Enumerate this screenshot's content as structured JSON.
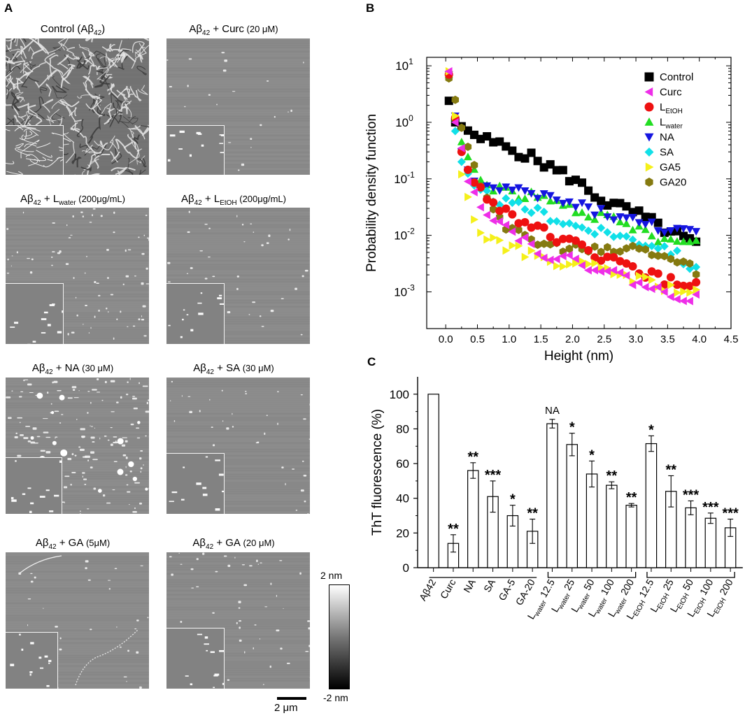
{
  "panel_labels": {
    "a": "A",
    "b": "B",
    "c": "C"
  },
  "afm_panels": [
    {
      "pre": "Control (Aβ",
      "sub": "42",
      "post": ")",
      "conc": ""
    },
    {
      "pre": "Aβ",
      "sub": "42",
      "post": " + Curc",
      "conc": " (20 μM)"
    },
    {
      "pre": "Aβ",
      "sub": "42",
      "post": " + L",
      "sub2": "water",
      "conc": " (200μg/mL)"
    },
    {
      "pre": "Aβ",
      "sub": "42",
      "post": " + L",
      "sub2": "EtOH",
      "conc": " (200μg/mL)"
    },
    {
      "pre": "Aβ",
      "sub": "42",
      "post": " + NA",
      "conc": " (30 μM)"
    },
    {
      "pre": "Aβ",
      "sub": "42",
      "post": " + SA",
      "conc": " (30 μM)"
    },
    {
      "pre": "Aβ",
      "sub": "42",
      "post": " + GA",
      "conc": " (5μM)"
    },
    {
      "pre": "Aβ",
      "sub": "42",
      "post": " + GA",
      "conc": " (20 μM)"
    }
  ],
  "colorbar": {
    "top": "2 nm",
    "bottom": "-2 nm"
  },
  "scalebar": {
    "label": "2 μm"
  },
  "chart_data": [
    {
      "type": "scatter",
      "panel": "B",
      "xlabel": "Height (nm)",
      "ylabel": "Probability density function",
      "xlim": [
        -0.3,
        4.5
      ],
      "ylim_log10": [
        -3.65,
        1.15
      ],
      "yscale": "log",
      "xticks": [
        "0.0",
        "0.5",
        "1.0",
        "1.5",
        "2.0",
        "2.5",
        "3.0",
        "3.5",
        "4.0",
        "4.5"
      ],
      "yticks": [
        {
          "base": "10",
          "exp": "1",
          "value": 10
        },
        {
          "base": "10",
          "exp": "0",
          "value": 1
        },
        {
          "base": "10",
          "exp": "-1",
          "value": 0.1
        },
        {
          "base": "10",
          "exp": "-2",
          "value": 0.01
        },
        {
          "base": "10",
          "exp": "-3",
          "value": 0.001
        }
      ],
      "series": [
        {
          "name": "Control",
          "sub": "",
          "color": "#000000",
          "marker": "square",
          "anchors": [
            [
              0.05,
              2.4
            ],
            [
              0.15,
              1.0
            ],
            [
              0.25,
              0.85
            ],
            [
              0.5,
              0.55
            ],
            [
              1.0,
              0.35
            ],
            [
              1.5,
              0.2
            ],
            [
              2.0,
              0.1
            ],
            [
              2.5,
              0.04
            ],
            [
              3.0,
              0.025
            ],
            [
              3.5,
              0.012
            ],
            [
              3.95,
              0.007
            ]
          ]
        },
        {
          "name": "Curc",
          "sub": "",
          "color": "#ee2ee8",
          "marker": "tri-left",
          "anchors": [
            [
              0.05,
              8
            ],
            [
              0.15,
              1.0
            ],
            [
              0.25,
              0.35
            ],
            [
              0.35,
              0.09
            ],
            [
              0.6,
              0.03
            ],
            [
              1.0,
              0.013
            ],
            [
              1.5,
              0.005
            ],
            [
              2.0,
              0.0035
            ],
            [
              2.5,
              0.0025
            ],
            [
              3.0,
              0.0015
            ],
            [
              3.5,
              0.0009
            ],
            [
              3.95,
              0.0008
            ]
          ]
        },
        {
          "name": "L",
          "sub": "EtOH",
          "color": "#ee1111",
          "marker": "circle",
          "anchors": [
            [
              0.05,
              7
            ],
            [
              0.15,
              1.2
            ],
            [
              0.25,
              0.3
            ],
            [
              0.4,
              0.1
            ],
            [
              0.7,
              0.04
            ],
            [
              1.0,
              0.025
            ],
            [
              1.5,
              0.012
            ],
            [
              2.0,
              0.007
            ],
            [
              2.5,
              0.004
            ],
            [
              3.0,
              0.0025
            ],
            [
              3.5,
              0.0015
            ],
            [
              3.95,
              0.0013
            ]
          ]
        },
        {
          "name": "L",
          "sub": "water",
          "color": "#22dd22",
          "marker": "tri-up",
          "anchors": [
            [
              0.05,
              7
            ],
            [
              0.15,
              1.2
            ],
            [
              0.25,
              0.45
            ],
            [
              0.4,
              0.18
            ],
            [
              0.6,
              0.08
            ],
            [
              1.0,
              0.06
            ],
            [
              1.5,
              0.045
            ],
            [
              2.0,
              0.03
            ],
            [
              2.5,
              0.02
            ],
            [
              3.0,
              0.013
            ],
            [
              3.5,
              0.008
            ],
            [
              3.95,
              0.007
            ]
          ]
        },
        {
          "name": "NA",
          "sub": "",
          "color": "#1515e0",
          "marker": "tri-down",
          "anchors": [
            [
              0.05,
              7
            ],
            [
              0.15,
              1.3
            ],
            [
              0.25,
              0.3
            ],
            [
              0.4,
              0.1
            ],
            [
              0.6,
              0.07
            ],
            [
              1.0,
              0.06
            ],
            [
              1.5,
              0.05
            ],
            [
              2.0,
              0.035
            ],
            [
              2.5,
              0.025
            ],
            [
              3.0,
              0.017
            ],
            [
              3.5,
              0.013
            ],
            [
              3.95,
              0.01
            ]
          ]
        },
        {
          "name": "SA",
          "sub": "",
          "color": "#11e0e8",
          "marker": "diamond",
          "anchors": [
            [
              0.05,
              7
            ],
            [
              0.15,
              0.7
            ],
            [
              0.25,
              0.2
            ],
            [
              0.5,
              0.06
            ],
            [
              1.0,
              0.035
            ],
            [
              1.5,
              0.025
            ],
            [
              2.0,
              0.015
            ],
            [
              2.5,
              0.012
            ],
            [
              3.0,
              0.008
            ],
            [
              3.5,
              0.006
            ],
            [
              3.95,
              0.0023
            ]
          ]
        },
        {
          "name": "GA5",
          "sub": "",
          "color": "#f5f01a",
          "marker": "tri-right",
          "anchors": [
            [
              0.05,
              8
            ],
            [
              0.15,
              1.3
            ],
            [
              0.25,
              0.12
            ],
            [
              0.5,
              0.012
            ],
            [
              1.0,
              0.006
            ],
            [
              1.5,
              0.004
            ],
            [
              2.0,
              0.003
            ],
            [
              2.5,
              0.0025
            ],
            [
              3.0,
              0.0017
            ],
            [
              3.5,
              0.0012
            ],
            [
              3.95,
              0.0009
            ]
          ]
        },
        {
          "name": "GA20",
          "sub": "",
          "color": "#857a10",
          "marker": "hexagon",
          "anchors": [
            [
              0.05,
              6
            ],
            [
              0.15,
              2.5
            ],
            [
              0.25,
              0.8
            ],
            [
              0.4,
              0.25
            ],
            [
              0.6,
              0.06
            ],
            [
              1.0,
              0.012
            ],
            [
              1.5,
              0.007
            ],
            [
              2.0,
              0.006
            ],
            [
              2.5,
              0.005
            ],
            [
              3.0,
              0.006
            ],
            [
              3.5,
              0.004
            ],
            [
              3.95,
              0.0025
            ]
          ]
        }
      ]
    },
    {
      "type": "bar",
      "panel": "C",
      "ylabel": "ThT fluorescence (%)",
      "ylim": [
        0,
        110
      ],
      "yticks": [
        "0",
        "20",
        "40",
        "60",
        "80",
        "100"
      ],
      "categories": [
        {
          "pre": "Aβ42",
          "sub": "",
          "post": ""
        },
        {
          "pre": "Curc",
          "sub": "",
          "post": ""
        },
        {
          "pre": "NA",
          "sub": "",
          "post": ""
        },
        {
          "pre": "SA",
          "sub": "",
          "post": ""
        },
        {
          "pre": "GA-5",
          "sub": "",
          "post": ""
        },
        {
          "pre": "GA-20",
          "sub": "",
          "post": ""
        },
        {
          "pre": "L",
          "sub": "water",
          "post": " 12.5"
        },
        {
          "pre": "L",
          "sub": "water",
          "post": " 25"
        },
        {
          "pre": "L",
          "sub": "water",
          "post": " 50"
        },
        {
          "pre": "L",
          "sub": "water",
          "post": " 100"
        },
        {
          "pre": "L",
          "sub": "water",
          "post": " 200"
        },
        {
          "pre": "L",
          "sub": "EtOH",
          "post": " 12.5"
        },
        {
          "pre": "L",
          "sub": "EtOH",
          "post": " 25"
        },
        {
          "pre": "L",
          "sub": "EtOH",
          "post": " 50"
        },
        {
          "pre": "L",
          "sub": "EtOH",
          "post": " 100"
        },
        {
          "pre": "L",
          "sub": "EtOH",
          "post": " 200"
        }
      ],
      "values": [
        100,
        14,
        56,
        41,
        30,
        21,
        83,
        71,
        54,
        47.5,
        36,
        71.5,
        44,
        34.5,
        28.5,
        23
      ],
      "errors": [
        0,
        5,
        4.5,
        9,
        6,
        7,
        2.5,
        6.5,
        7.5,
        2,
        1,
        4.5,
        9,
        4,
        3,
        5
      ],
      "significance": [
        "",
        "**",
        "**",
        "***",
        "*",
        "**",
        "NA",
        "*",
        "*",
        "**",
        "**",
        "*",
        "**",
        "***",
        "***",
        "***"
      ],
      "group_brackets": [
        [
          6,
          10
        ],
        [
          11,
          15
        ]
      ]
    }
  ]
}
